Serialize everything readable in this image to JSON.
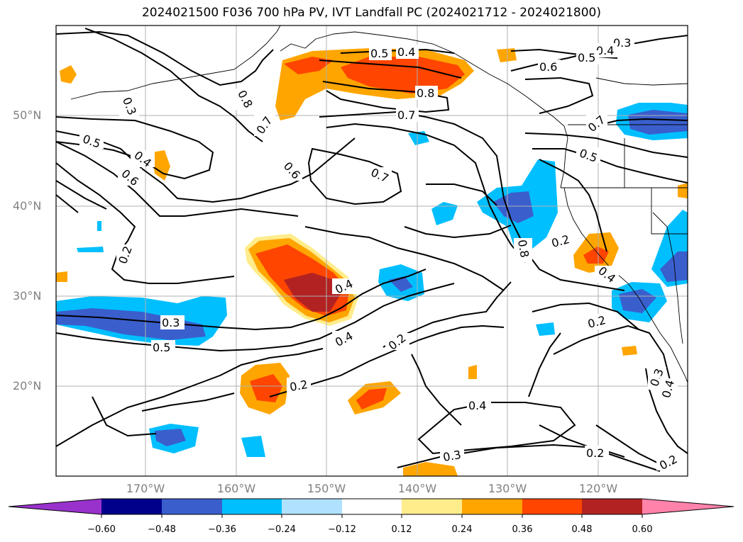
{
  "title": "2024021500 F036 700 hPa PV, IVT Landfall PC (2024021712 - 2024021800)",
  "lat_labels": [
    "50°N",
    "40°N",
    "30°N",
    "20°N"
  ],
  "lon_labels": [
    "170°W",
    "160°W",
    "150°W",
    "140°W",
    "130°W",
    "120°W"
  ],
  "colorbar": {
    "ticks": [
      "−0.60",
      "−0.48",
      "−0.36",
      "−0.24",
      "−0.12",
      "0.12",
      "0.24",
      "0.36",
      "0.48",
      "0.60"
    ],
    "colors": [
      "#9932cc",
      "#00008b",
      "#3a5fcd",
      "#00bfff",
      "#b0e2ff",
      "#ffffff",
      "#ffec8b",
      "#ffa500",
      "#ff4500",
      "#b22222",
      "#ff82ab"
    ]
  },
  "contour_labels": [
    "0.5",
    "0.4",
    "0.3",
    "0.4",
    "0.5",
    "0.6",
    "0.8",
    "0.7",
    "0.8",
    "0.3",
    "0.7",
    "0.5",
    "0.4",
    "0.6",
    "0.6",
    "0.7",
    "0.7",
    "0.5",
    "0.2",
    "0.8",
    "0.2",
    "0.4",
    "0.4",
    "0.3",
    "0.5",
    "0.4",
    "0.2",
    "0.2",
    "0.2",
    "0.4",
    "0.3",
    "0.2",
    "0.3",
    "0.4",
    "0.2"
  ]
}
